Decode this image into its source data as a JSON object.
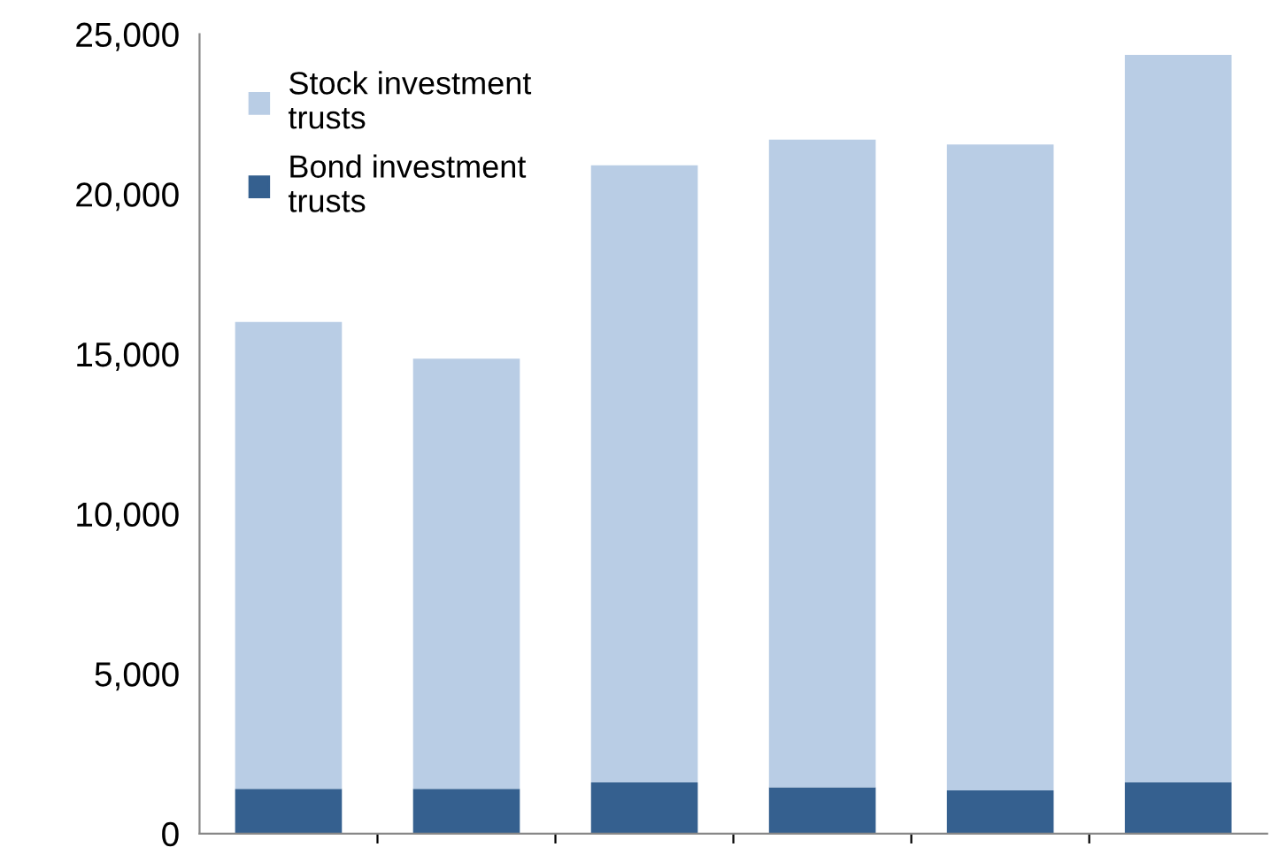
{
  "chart_data": {
    "type": "bar",
    "stacked": true,
    "categories": [
      null,
      null,
      null,
      null,
      null,
      null
    ],
    "series": [
      {
        "name": "Bond investment trusts",
        "color": "#35608f",
        "values": [
          1400,
          1400,
          1600,
          1450,
          1350,
          1600
        ]
      },
      {
        "name": "Stock investment trusts",
        "color": "#b9cde5",
        "values": [
          14600,
          13450,
          19300,
          20250,
          20200,
          22750
        ]
      }
    ],
    "ylim": [
      0,
      25000
    ],
    "yticks": [
      {
        "value": 0,
        "label": "0"
      },
      {
        "value": 5000,
        "label": "5,000"
      },
      {
        "value": 10000,
        "label": "10,000"
      },
      {
        "value": 15000,
        "label": "15,000"
      },
      {
        "value": 20000,
        "label": "20,000"
      },
      {
        "value": 25000,
        "label": "25,000"
      }
    ],
    "grid": false,
    "legend": "top left"
  }
}
